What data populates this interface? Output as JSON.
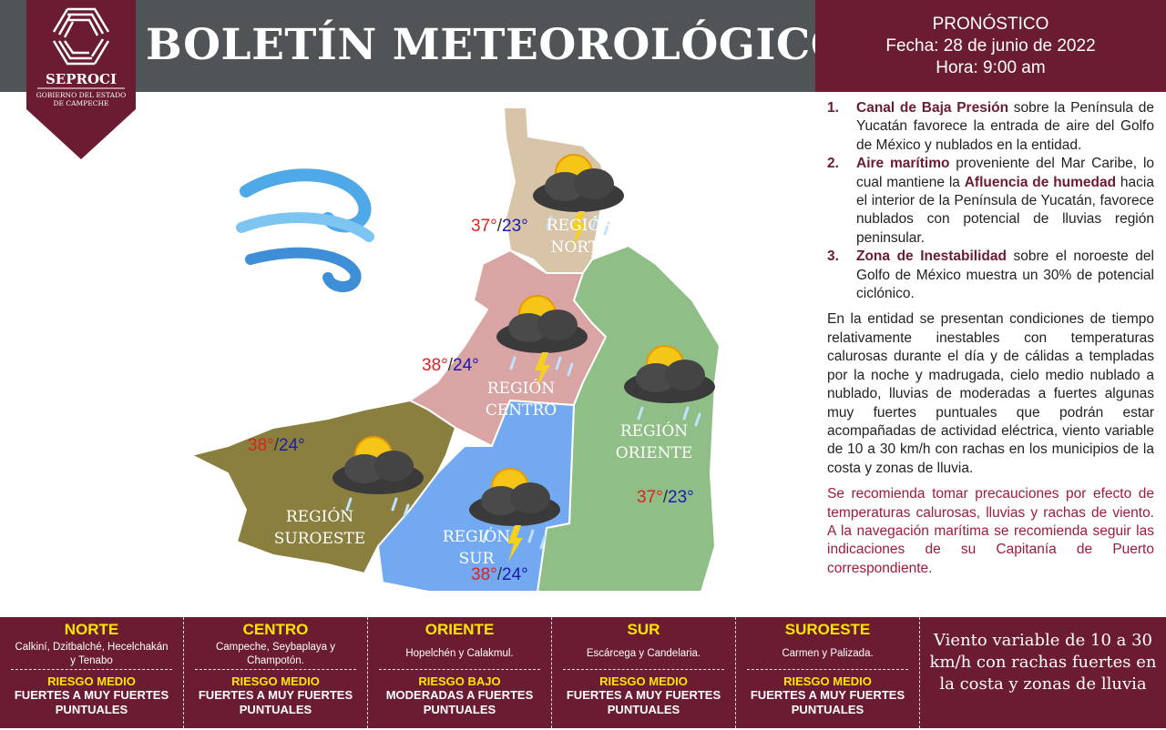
{
  "header": {
    "title": "BOLETÍN METEOROLÓGICO",
    "logo": {
      "name": "SEPROCI",
      "subtitle1": "GOBIERNO DEL ESTADO",
      "subtitle2": "DE CAMPECHE"
    },
    "forecast": {
      "label": "PRONÓSTICO",
      "date": "Fecha: 28 de junio de 2022",
      "time": "Hora: 9:00 am"
    }
  },
  "info": {
    "items": [
      {
        "num": "1.",
        "bold": "Canal de Baja Presión",
        "text": " sobre la Península de Yucatán favorece la entrada de aire del Golfo de México y nublados en la entidad."
      },
      {
        "num": "2.",
        "bold": "Aire marítimo",
        "text": " proveniente del Mar Caribe, lo cual mantiene la ",
        "bold2": "Afluencia de humedad",
        "text2": " hacia el interior de la Península de Yucatán, favorece nublados con potencial de lluvias región peninsular."
      },
      {
        "num": "3.",
        "bold": "Zona de Inestabilidad",
        "text": " sobre el noroeste del Golfo de México muestra un 30% de potencial ciclónico."
      }
    ],
    "summary": "En la entidad se presentan condiciones de tiempo relativamente inestables con temperaturas calurosas durante el día y de cálidas a templadas por la noche y madrugada, cielo medio nublado a nublado, lluvias de moderadas a fuertes algunas muy fuertes puntuales que podrán estar acompañadas de actividad eléctrica, viento variable de 10 a 30 km/h con rachas en los municipios de la costa y zonas de lluvia.",
    "recommendation": "Se recomienda tomar precauciones por efecto de temperaturas calurosas, lluvias y rachas de viento. A la navegación marítima se recomienda seguir las indicaciones de su Capitanía de Puerto correspondiente."
  },
  "map": {
    "regions": [
      {
        "l1": "REGIÓN",
        "l2": "NORTE",
        "max": "37°",
        "min": "23°",
        "color": "#d8c4a6"
      },
      {
        "l1": "REGIÓN",
        "l2": "CENTRO",
        "max": "38°",
        "min": "24°",
        "color": "#d9a4a4"
      },
      {
        "l1": "REGIÓN",
        "l2": "ORIENTE",
        "max": "37°",
        "min": "23°",
        "color": "#8fbf86"
      },
      {
        "l1": "REGIÓN",
        "l2": "SUR",
        "max": "38°",
        "min": "24°",
        "color": "#72a9f0"
      },
      {
        "l1": "REGIÓN",
        "l2": "SUROESTE",
        "max": "38°",
        "min": "24°",
        "color": "#8a7f3f"
      }
    ],
    "max_color": "#e02020",
    "min_color": "#1a1ab0",
    "icons": [
      "wind-icon",
      "storm-cloud-sun-icon"
    ]
  },
  "bottom": {
    "regions": [
      {
        "name": "NORTE",
        "municipalities": "Calkiní, Dzitbalché, Hecelchakán  y Tenabo",
        "risk": "RIESGO MEDIO",
        "desc": "FUERTES A MUY FUERTES PUNTUALES"
      },
      {
        "name": "CENTRO",
        "municipalities": "Campeche, Seybaplaya y Champotón.",
        "risk": "RIESGO MEDIO",
        "desc": "FUERTES A MUY FUERTES PUNTUALES"
      },
      {
        "name": "ORIENTE",
        "municipalities": "Hopelchén y Calakmul.",
        "risk": "RIESGO BAJO",
        "desc": "MODERADAS A FUERTES PUNTUALES"
      },
      {
        "name": "SUR",
        "municipalities": "Escárcega y Candelaria.",
        "risk": "RIESGO MEDIO",
        "desc": "FUERTES A MUY FUERTES PUNTUALES"
      },
      {
        "name": "SUROESTE",
        "municipalities": "Carmen y Palizada.",
        "risk": "RIESGO MEDIO",
        "desc": "FUERTES A MUY FUERTES PUNTUALES"
      }
    ],
    "wind": "Viento variable de 10 a 30 km/h con rachas fuertes en la costa y zonas de lluvia"
  }
}
